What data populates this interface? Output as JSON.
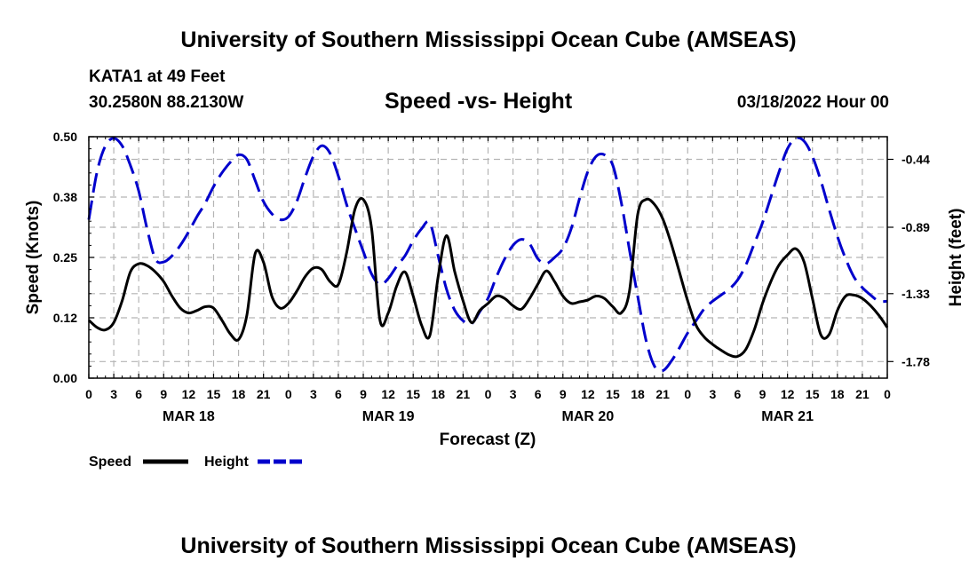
{
  "page": {
    "title_top": "University of Southern Mississippi Ocean Cube (AMSEAS)",
    "title_bottom": "University of Southern Mississippi Ocean Cube (AMSEAS)",
    "station": "KATA1 at 49 Feet",
    "coords": "30.2580N  88.2130W",
    "subtitle": "Speed -vs- Height",
    "datetime": "03/18/2022 Hour 00"
  },
  "colors": {
    "speed": "#000000",
    "height": "#0000cc",
    "grid": "#b4b4b4"
  },
  "chart_data": {
    "type": "line",
    "title": "Speed -vs- Height",
    "xlabel": "Forecast (Z)",
    "ylabel": "Speed (Knots)",
    "y2label": "Height (feet)",
    "x_range": [
      0,
      96
    ],
    "x_tick_labels": [
      "0",
      "3",
      "6",
      "9",
      "12",
      "15",
      "18",
      "21",
      "0",
      "3",
      "6",
      "9",
      "12",
      "15",
      "18",
      "21",
      "0",
      "3",
      "6",
      "9",
      "12",
      "15",
      "18",
      "21",
      "0",
      "3",
      "6",
      "9",
      "12",
      "15",
      "18",
      "21",
      "0"
    ],
    "day_labels": [
      {
        "x": 12,
        "label": "MAR 18"
      },
      {
        "x": 36,
        "label": "MAR 19"
      },
      {
        "x": 60,
        "label": "MAR 20"
      },
      {
        "x": 84,
        "label": "MAR 21"
      }
    ],
    "ylim": [
      0,
      0.5
    ],
    "y_ticks": [
      "0.00",
      "0.12",
      "0.25",
      "0.38",
      "0.50"
    ],
    "y_tick_values": [
      0,
      0.125,
      0.25,
      0.375,
      0.5
    ],
    "y2lim": [
      -1.89,
      -0.29
    ],
    "y2_ticks": [
      "-0.44",
      "-0.89",
      "-1.33",
      "-1.78"
    ],
    "y2_tick_values": [
      -0.44,
      -0.89,
      -1.33,
      -1.78
    ],
    "legend": [
      {
        "name": "Speed",
        "style": "solid"
      },
      {
        "name": "Height",
        "style": "dashed"
      }
    ],
    "series": [
      {
        "name": "Speed",
        "axis": "left",
        "x": [
          0,
          1,
          2,
          3,
          4,
          5,
          6,
          7,
          8,
          9,
          10,
          11,
          12,
          13,
          14,
          15,
          16,
          17,
          18,
          19,
          20,
          21,
          22,
          23,
          24,
          25,
          26,
          27,
          28,
          29,
          30,
          31,
          32,
          33,
          34,
          35,
          36,
          37,
          38,
          39,
          40,
          41,
          42,
          43,
          44,
          45,
          46,
          47,
          48,
          49,
          50,
          51,
          52,
          53,
          54,
          55,
          56,
          57,
          58,
          59,
          60,
          61,
          62,
          63,
          64,
          65,
          66,
          67,
          68,
          69,
          70,
          71,
          72,
          73,
          74,
          75,
          76,
          77,
          78,
          79,
          80,
          81,
          82,
          83,
          84,
          85,
          86,
          87,
          88,
          89,
          90,
          91,
          92,
          93,
          94,
          95,
          96
        ],
        "values": [
          0.12,
          0.105,
          0.1,
          0.115,
          0.16,
          0.22,
          0.237,
          0.233,
          0.22,
          0.2,
          0.17,
          0.145,
          0.135,
          0.14,
          0.148,
          0.145,
          0.12,
          0.092,
          0.08,
          0.13,
          0.258,
          0.24,
          0.17,
          0.145,
          0.155,
          0.18,
          0.21,
          0.228,
          0.225,
          0.2,
          0.194,
          0.26,
          0.35,
          0.37,
          0.31,
          0.12,
          0.135,
          0.19,
          0.22,
          0.17,
          0.11,
          0.088,
          0.21,
          0.295,
          0.22,
          0.16,
          0.115,
          0.14,
          0.155,
          0.17,
          0.165,
          0.15,
          0.143,
          0.165,
          0.195,
          0.222,
          0.2,
          0.17,
          0.155,
          0.158,
          0.162,
          0.17,
          0.165,
          0.148,
          0.135,
          0.18,
          0.34,
          0.37,
          0.36,
          0.33,
          0.28,
          0.22,
          0.16,
          0.11,
          0.085,
          0.07,
          0.058,
          0.048,
          0.045,
          0.06,
          0.1,
          0.155,
          0.2,
          0.235,
          0.255,
          0.268,
          0.24,
          0.165,
          0.09,
          0.09,
          0.14,
          0.17,
          0.172,
          0.165,
          0.15,
          0.13,
          0.105
        ]
      },
      {
        "name": "Height",
        "axis": "right",
        "x": [
          0,
          1,
          2,
          3,
          4,
          5,
          6,
          7,
          8,
          9,
          10,
          11,
          12,
          13,
          14,
          15,
          16,
          17,
          18,
          19,
          20,
          21,
          22,
          23,
          24,
          25,
          26,
          27,
          28,
          29,
          30,
          31,
          32,
          33,
          34,
          35,
          36,
          37,
          38,
          39,
          40,
          41,
          42,
          43,
          44,
          45,
          46,
          47,
          48,
          49,
          50,
          51,
          52,
          53,
          54,
          55,
          56,
          57,
          58,
          59,
          60,
          61,
          62,
          63,
          64,
          65,
          66,
          67,
          68,
          69,
          70,
          71,
          72,
          73,
          74,
          75,
          76,
          77,
          78,
          79,
          80,
          81,
          82,
          83,
          84,
          85,
          86,
          87,
          88,
          89,
          90,
          91,
          92,
          93,
          94,
          95,
          96
        ],
        "values": [
          -0.84,
          -0.52,
          -0.35,
          -0.3,
          -0.35,
          -0.48,
          -0.65,
          -0.9,
          -1.1,
          -1.12,
          -1.08,
          -1.01,
          -0.92,
          -0.82,
          -0.73,
          -0.62,
          -0.53,
          -0.46,
          -0.41,
          -0.44,
          -0.58,
          -0.72,
          -0.8,
          -0.84,
          -0.82,
          -0.72,
          -0.56,
          -0.42,
          -0.35,
          -0.4,
          -0.55,
          -0.74,
          -0.9,
          -1.05,
          -1.2,
          -1.27,
          -1.23,
          -1.15,
          -1.08,
          -0.98,
          -0.9,
          -0.86,
          -1.08,
          -1.3,
          -1.44,
          -1.51,
          -1.53,
          -1.45,
          -1.36,
          -1.22,
          -1.1,
          -1.01,
          -0.97,
          -1.0,
          -1.1,
          -1.13,
          -1.09,
          -1.03,
          -0.9,
          -0.7,
          -0.52,
          -0.42,
          -0.41,
          -0.48,
          -0.72,
          -1.04,
          -1.35,
          -1.64,
          -1.81,
          -1.84,
          -1.78,
          -1.69,
          -1.59,
          -1.51,
          -1.43,
          -1.38,
          -1.34,
          -1.3,
          -1.24,
          -1.14,
          -1.0,
          -0.86,
          -0.69,
          -0.52,
          -0.37,
          -0.3,
          -0.32,
          -0.42,
          -0.58,
          -0.77,
          -0.95,
          -1.1,
          -1.22,
          -1.29,
          -1.34,
          -1.38,
          -1.38
        ]
      }
    ]
  }
}
